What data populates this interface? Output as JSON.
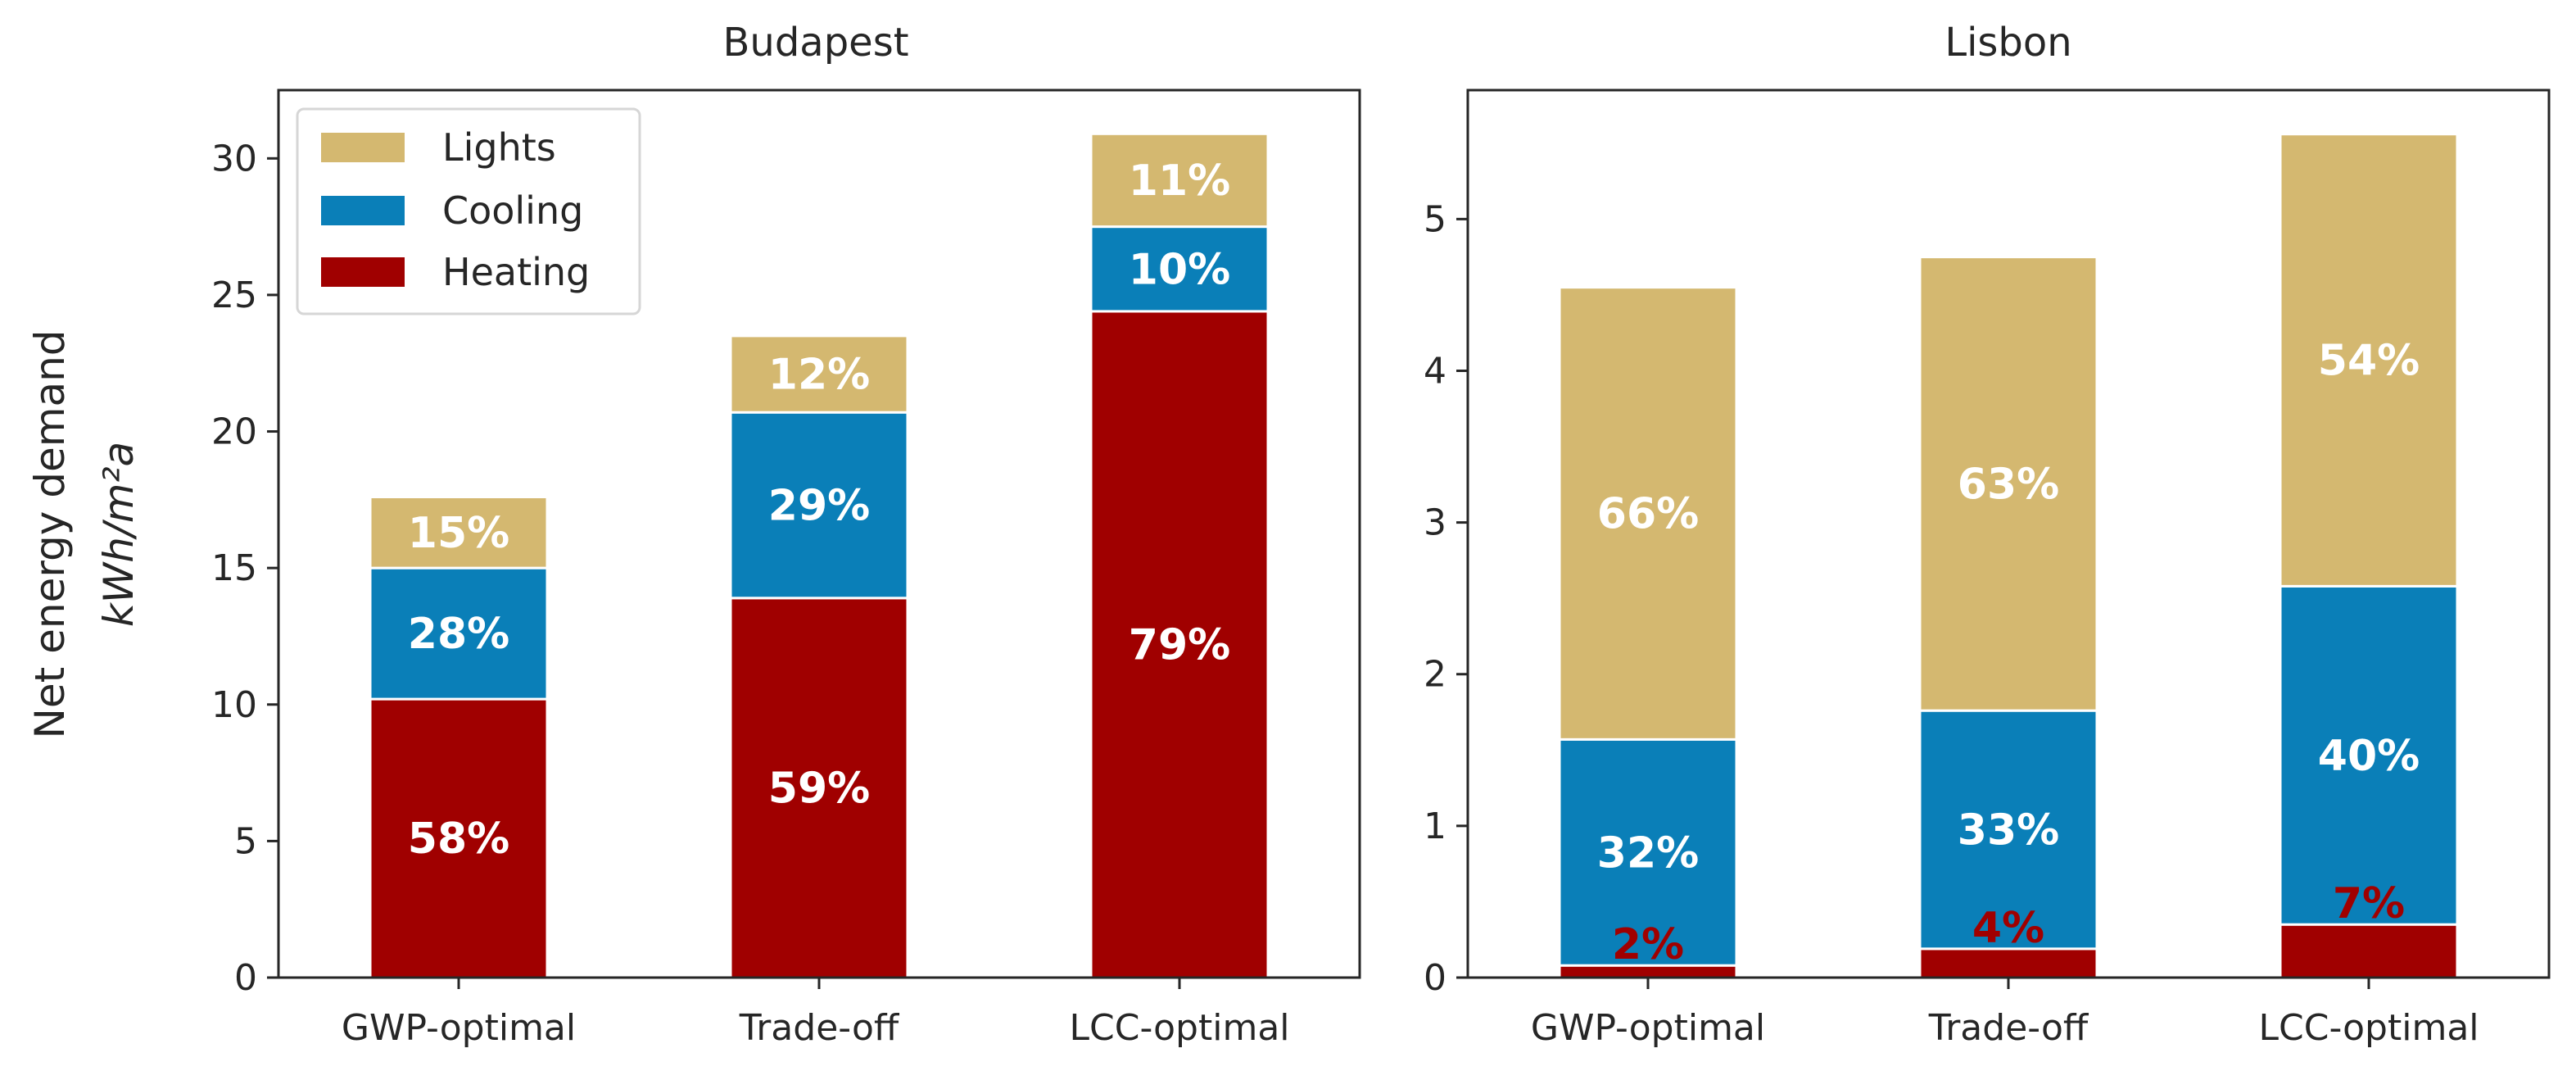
{
  "chart_data": [
    {
      "type": "bar",
      "stacked": true,
      "title": "Budapest",
      "categories": [
        "GWP-optimal",
        "Trade-off",
        "LCC-optimal"
      ],
      "ylabel": "Net energy demand",
      "ylabel_unit": "kWh/m²a",
      "ylim": [
        0,
        32.5
      ],
      "yticks": [
        "0",
        "5",
        "10",
        "15",
        "20",
        "25",
        "30"
      ],
      "legend": "top-left",
      "series": [
        {
          "name": "Heating",
          "color": "#a00000",
          "label_color": "#ffffff",
          "values": [
            10.2,
            13.9,
            24.4
          ],
          "labels": [
            "58%",
            "59%",
            "79%"
          ]
        },
        {
          "name": "Cooling",
          "color": "#0a7fb8",
          "label_color": "#ffffff",
          "values": [
            4.8,
            6.8,
            3.1
          ],
          "labels": [
            "28%",
            "29%",
            "10%"
          ]
        },
        {
          "name": "Lights",
          "color": "#d4b870",
          "label_color": "#ffffff",
          "values": [
            2.6,
            2.8,
            3.4
          ],
          "labels": [
            "15%",
            "12%",
            "11%"
          ]
        }
      ]
    },
    {
      "type": "bar",
      "stacked": true,
      "title": "Lisbon",
      "categories": [
        "GWP-optimal",
        "Trade-off",
        "LCC-optimal"
      ],
      "ylim": [
        0,
        5.85
      ],
      "yticks": [
        "0",
        "1",
        "2",
        "3",
        "4",
        "5"
      ],
      "series": [
        {
          "name": "Heating",
          "color": "#a00000",
          "label_color": "#a00000",
          "values": [
            0.08,
            0.19,
            0.35
          ],
          "labels": [
            "2%",
            "4%",
            "7%"
          ]
        },
        {
          "name": "Cooling",
          "color": "#0a7fb8",
          "label_color": "#ffffff",
          "values": [
            1.49,
            1.57,
            2.23
          ],
          "labels": [
            "32%",
            "33%",
            "40%"
          ]
        },
        {
          "name": "Lights",
          "color": "#d4b870",
          "label_color": "#ffffff",
          "values": [
            2.98,
            2.99,
            2.98
          ],
          "labels": [
            "66%",
            "63%",
            "54%"
          ]
        }
      ]
    }
  ]
}
